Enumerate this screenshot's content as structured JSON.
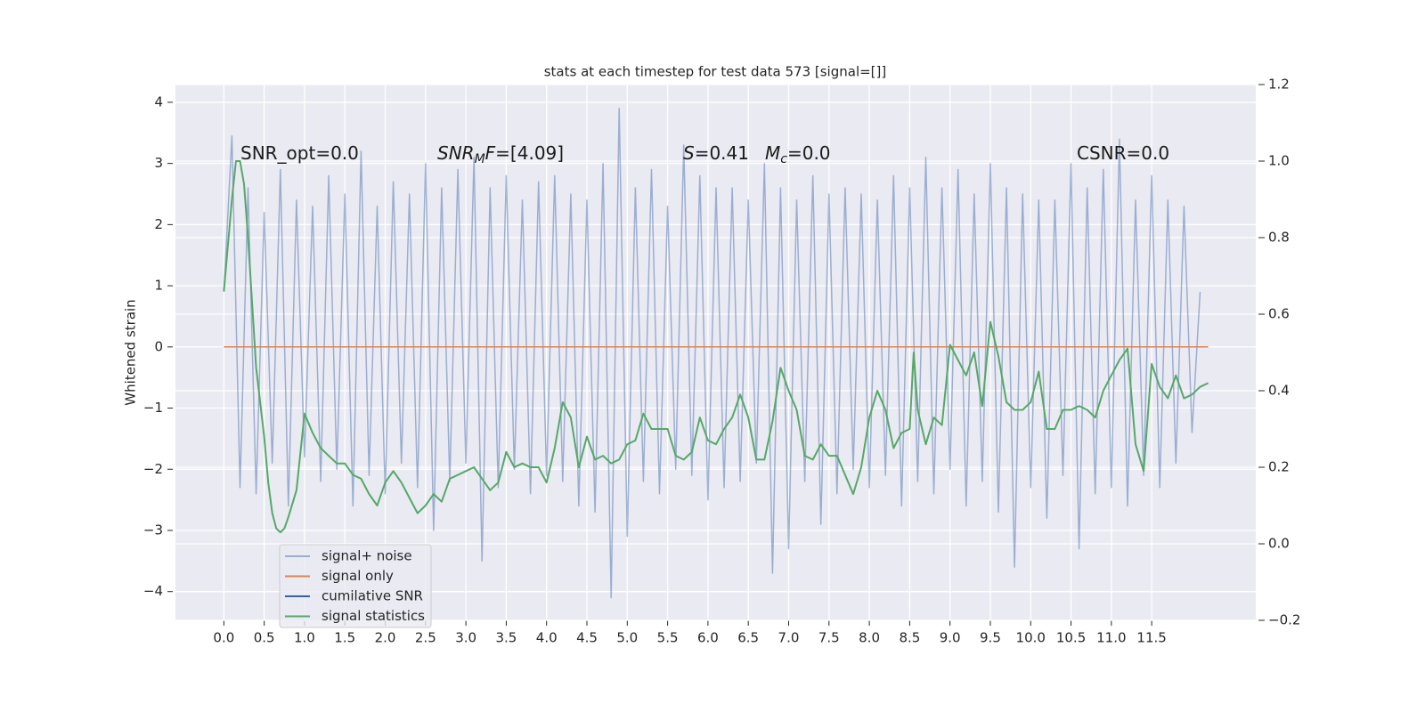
{
  "chart_data": {
    "type": "line",
    "title": "stats at each timestep for test data 573 [signal=[]]",
    "ylabel": "Whitened strain",
    "annotations": [
      [
        "SNR_opt=0.0"
      ],
      [
        "SNR",
        "M",
        "F",
        "=[4.09]"
      ],
      [
        "S",
        "=0.41"
      ],
      [
        "M",
        "c",
        "=0.0"
      ],
      [
        "CSNR=0.0"
      ]
    ],
    "xlim": [
      -0.6,
      12.79
    ],
    "xticks": [
      {
        "value": 0,
        "label": "0.0"
      },
      0.5,
      {
        "value": 1,
        "label": "1.0"
      },
      1.5,
      {
        "value": 2,
        "label": "2.0"
      },
      2.5,
      {
        "value": 3,
        "label": "3.0"
      },
      3.5,
      {
        "value": 4,
        "label": "4.0"
      },
      4.5,
      {
        "value": 5,
        "label": "5.0"
      },
      5.5,
      {
        "value": 6,
        "label": "6.0"
      },
      6.5,
      {
        "value": 7,
        "label": "7.0"
      },
      7.5,
      {
        "value": 8,
        "label": "8.0"
      },
      8.5,
      {
        "value": 9,
        "label": "9.0"
      },
      9.5,
      {
        "value": 10,
        "label": "10.0"
      },
      10.5,
      {
        "value": 11,
        "label": "11.0"
      },
      11.5
    ],
    "ylim": [
      -4.47,
      4.29
    ],
    "yticks": [
      {
        "value": -4,
        "label": "−4"
      },
      {
        "value": -3,
        "label": "−3"
      },
      {
        "value": -2,
        "label": "−2"
      },
      {
        "value": -1,
        "label": "−1"
      },
      0,
      1,
      2,
      3,
      4
    ],
    "y2lim": [
      -0.2,
      1.2
    ],
    "y2ticks": [
      {
        "value": -0.2,
        "label": "−0.2"
      },
      {
        "value": 0,
        "label": "0.0"
      },
      0.2,
      0.4,
      0.6,
      0.8,
      {
        "value": 1,
        "label": "1.0"
      },
      1.2
    ],
    "grid": true,
    "legend": "lower left",
    "series": [
      {
        "name": "signal+ noise",
        "color": "#4c72b0",
        "alpha": 0.5,
        "x": [
          0,
          0.1,
          0.2,
          0.3,
          0.4,
          0.5,
          0.6,
          0.7,
          0.8,
          0.9,
          1,
          1.1,
          1.2,
          1.3,
          1.4,
          1.5,
          1.6,
          1.7,
          1.8,
          1.9,
          2,
          2.1,
          2.2,
          2.3,
          2.4,
          2.5,
          2.6,
          2.7,
          2.8,
          2.9,
          3,
          3.1,
          3.2,
          3.3,
          3.4,
          3.5,
          3.6,
          3.7,
          3.8,
          3.9,
          4,
          4.1,
          4.2,
          4.3,
          4.4,
          4.5,
          4.6,
          4.7,
          4.8,
          4.9,
          5,
          5.1,
          5.2,
          5.3,
          5.4,
          5.5,
          5.6,
          5.7,
          5.8,
          5.9,
          6,
          6.1,
          6.2,
          6.3,
          6.4,
          6.5,
          6.6,
          6.7,
          6.8,
          6.9,
          7,
          7.1,
          7.2,
          7.3,
          7.4,
          7.5,
          7.6,
          7.7,
          7.8,
          7.9,
          8,
          8.1,
          8.2,
          8.3,
          8.4,
          8.5,
          8.6,
          8.7,
          8.8,
          8.9,
          9,
          9.1,
          9.2,
          9.3,
          9.4,
          9.5,
          9.6,
          9.7,
          9.8,
          9.9,
          10,
          10.1,
          10.2,
          10.3,
          10.4,
          10.5,
          10.6,
          10.7,
          10.8,
          10.9,
          11,
          11.1,
          11.2,
          11.3,
          11.4,
          11.5,
          11.6,
          11.7,
          11.8,
          11.9,
          12,
          12.1
        ],
        "values": [
          0.9,
          3.45,
          -2.3,
          2.6,
          -2.4,
          2.2,
          -1.9,
          2.9,
          -2.6,
          2.4,
          -1.8,
          2.3,
          -2.2,
          2.8,
          -2.0,
          2.5,
          -2.6,
          3.2,
          -2.1,
          2.3,
          -2.4,
          2.7,
          -1.9,
          2.5,
          -2.3,
          3.0,
          -3.0,
          2.6,
          -2.2,
          2.9,
          -1.9,
          3.1,
          -3.5,
          2.6,
          -2.3,
          2.8,
          -2.0,
          2.4,
          -2.4,
          2.7,
          -2.1,
          2.8,
          -2.2,
          2.5,
          -2.6,
          2.4,
          -2.7,
          3.0,
          -4.1,
          3.9,
          -3.1,
          2.6,
          -2.2,
          2.9,
          -2.4,
          2.3,
          -2.0,
          3.3,
          -2.1,
          2.8,
          -2.5,
          2.6,
          -2.3,
          2.6,
          -2.2,
          2.4,
          -1.9,
          3.0,
          -3.7,
          2.6,
          -3.3,
          2.4,
          -2.2,
          2.8,
          -2.9,
          2.5,
          -2.4,
          2.6,
          -2.0,
          2.5,
          -2.3,
          2.4,
          -2.1,
          2.8,
          -2.6,
          2.6,
          -2.2,
          3.1,
          -2.4,
          2.6,
          -2.0,
          2.9,
          -2.6,
          2.5,
          -2.2,
          3.0,
          -2.7,
          2.6,
          -3.6,
          2.5,
          -2.3,
          2.4,
          -2.8,
          2.4,
          -2.1,
          3.0,
          -3.3,
          2.6,
          -2.4,
          2.9,
          -2.3,
          3.4,
          -2.6,
          2.4,
          -2.1,
          2.8,
          -2.3,
          2.4,
          -1.9,
          2.3,
          -1.4,
          0.9
        ]
      },
      {
        "name": "signal only",
        "color": "#dd8452",
        "alpha": 1,
        "x": [
          0,
          12.2
        ],
        "values": [
          0,
          0
        ]
      },
      {
        "name": "cumilative SNR",
        "color": "#3b5fa3",
        "alpha": 1
      },
      {
        "name": "signal statistics",
        "color": "#55a868",
        "alpha": 1,
        "axis": "y2",
        "x": [
          0,
          0.1,
          0.15,
          0.2,
          0.25,
          0.3,
          0.4,
          0.5,
          0.55,
          0.6,
          0.65,
          0.7,
          0.75,
          0.8,
          0.9,
          1,
          1.1,
          1.2,
          1.3,
          1.4,
          1.5,
          1.6,
          1.7,
          1.8,
          1.9,
          2,
          2.1,
          2.2,
          2.3,
          2.4,
          2.5,
          2.6,
          2.7,
          2.8,
          2.9,
          3,
          3.1,
          3.2,
          3.3,
          3.4,
          3.5,
          3.6,
          3.7,
          3.8,
          3.9,
          4,
          4.1,
          4.2,
          4.3,
          4.4,
          4.5,
          4.6,
          4.7,
          4.8,
          4.9,
          5,
          5.1,
          5.2,
          5.3,
          5.4,
          5.5,
          5.6,
          5.7,
          5.8,
          5.9,
          6,
          6.1,
          6.2,
          6.3,
          6.4,
          6.5,
          6.6,
          6.7,
          6.8,
          6.9,
          7,
          7.1,
          7.2,
          7.3,
          7.4,
          7.5,
          7.6,
          7.7,
          7.8,
          7.9,
          8,
          8.1,
          8.2,
          8.3,
          8.4,
          8.5,
          8.55,
          8.6,
          8.7,
          8.8,
          8.9,
          9,
          9.1,
          9.2,
          9.3,
          9.4,
          9.5,
          9.6,
          9.7,
          9.8,
          9.9,
          10,
          10.1,
          10.2,
          10.3,
          10.4,
          10.5,
          10.6,
          10.7,
          10.8,
          10.9,
          11,
          11.1,
          11.2,
          11.3,
          11.4,
          11.5,
          11.6,
          11.7,
          11.8,
          11.9,
          12,
          12.1,
          12.2
        ],
        "values": [
          0.66,
          0.9,
          1.0,
          1.0,
          0.94,
          0.8,
          0.46,
          0.28,
          0.16,
          0.08,
          0.04,
          0.03,
          0.04,
          0.07,
          0.14,
          0.34,
          0.29,
          0.25,
          0.23,
          0.21,
          0.21,
          0.18,
          0.17,
          0.13,
          0.1,
          0.16,
          0.19,
          0.16,
          0.12,
          0.08,
          0.1,
          0.13,
          0.11,
          0.17,
          0.18,
          0.19,
          0.2,
          0.17,
          0.14,
          0.16,
          0.24,
          0.2,
          0.21,
          0.2,
          0.2,
          0.16,
          0.25,
          0.37,
          0.33,
          0.2,
          0.28,
          0.22,
          0.23,
          0.21,
          0.22,
          0.26,
          0.27,
          0.34,
          0.3,
          0.3,
          0.3,
          0.23,
          0.22,
          0.24,
          0.33,
          0.27,
          0.26,
          0.3,
          0.33,
          0.39,
          0.33,
          0.22,
          0.22,
          0.32,
          0.46,
          0.4,
          0.35,
          0.23,
          0.22,
          0.26,
          0.23,
          0.23,
          0.18,
          0.13,
          0.2,
          0.33,
          0.4,
          0.35,
          0.25,
          0.29,
          0.3,
          0.5,
          0.35,
          0.26,
          0.33,
          0.31,
          0.52,
          0.48,
          0.44,
          0.5,
          0.36,
          0.58,
          0.49,
          0.37,
          0.35,
          0.35,
          0.37,
          0.45,
          0.3,
          0.3,
          0.35,
          0.35,
          0.36,
          0.35,
          0.33,
          0.4,
          0.44,
          0.48,
          0.51,
          0.26,
          0.19,
          0.47,
          0.41,
          0.38,
          0.44,
          0.38,
          0.39,
          0.41,
          0.42
        ]
      }
    ]
  }
}
